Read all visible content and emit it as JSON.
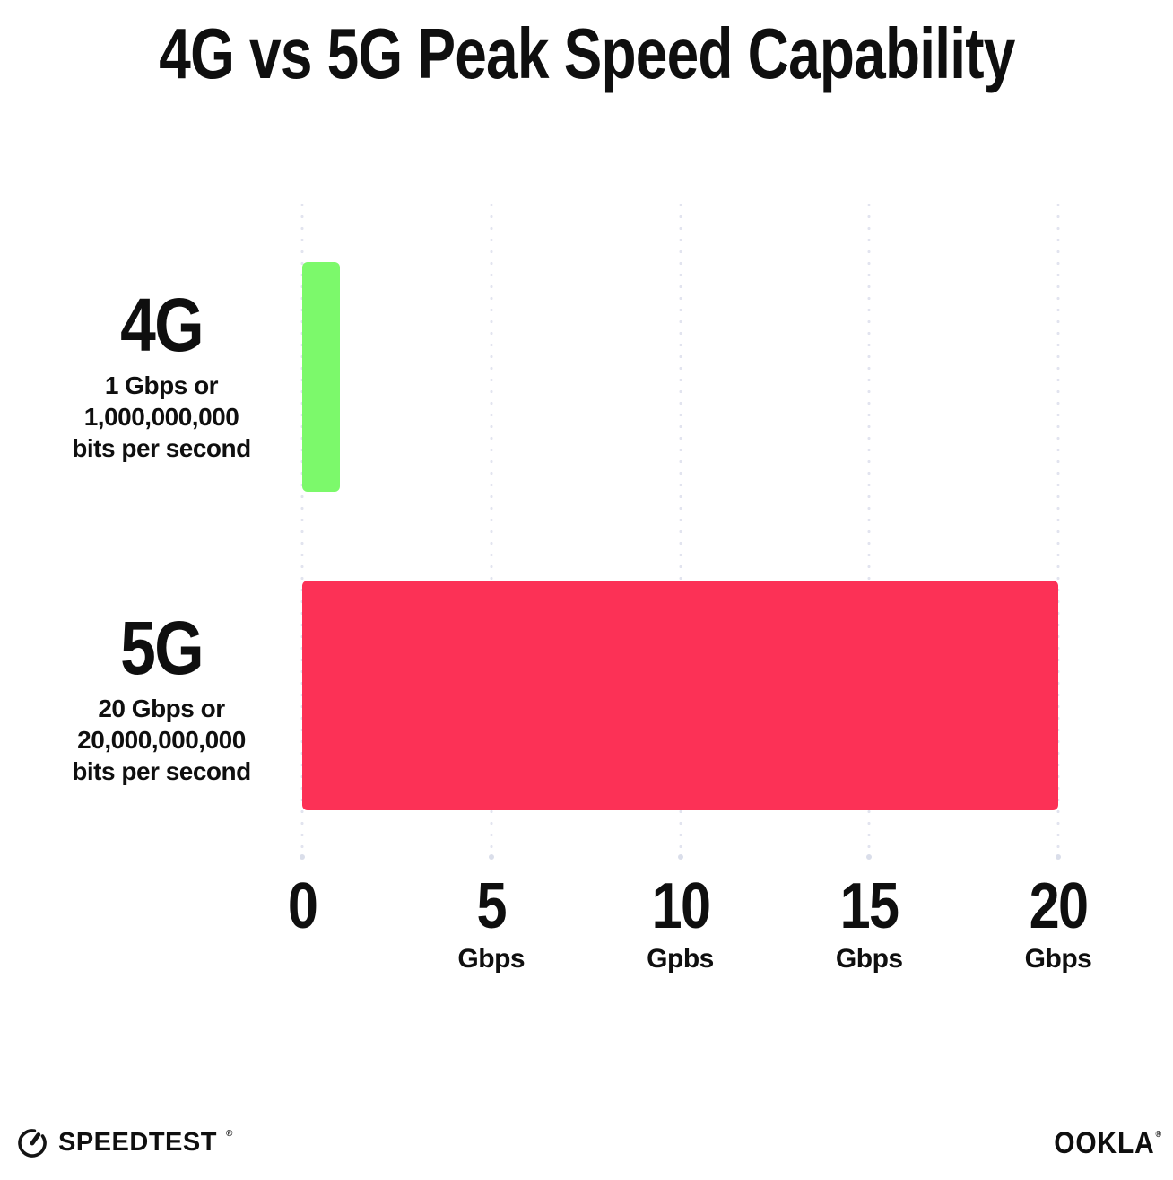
{
  "title": "4G vs 5G Peak Speed Capability",
  "chart_data": {
    "type": "bar",
    "orientation": "horizontal",
    "title": "4G vs 5G Peak Speed Capability",
    "categories": [
      "4G",
      "5G"
    ],
    "values": [
      1,
      20
    ],
    "value_unit": "Gbps",
    "bar_colors": [
      "#7CF96B",
      "#FC3156"
    ],
    "row_labels": [
      {
        "big": "4G",
        "lines": [
          "1 Gbps or",
          "1,000,000,000",
          "bits per second"
        ]
      },
      {
        "big": "5G",
        "lines": [
          "20 Gbps or",
          "20,000,000,000",
          "bits per second"
        ]
      }
    ],
    "x_axis": {
      "min": 0,
      "max": 20,
      "ticks": [
        {
          "value": 0,
          "label": "0",
          "unit": ""
        },
        {
          "value": 5,
          "label": "5",
          "unit": "Gbps"
        },
        {
          "value": 10,
          "label": "10",
          "unit": "Gpbs"
        },
        {
          "value": 15,
          "label": "15",
          "unit": "Gbps"
        },
        {
          "value": 20,
          "label": "20",
          "unit": "Gbps"
        }
      ]
    },
    "grid": {
      "style": "dotted-vertical",
      "color": "#E2E4EF"
    },
    "legend": "none"
  },
  "footer": {
    "speedtest_wordmark": "SPEEDTEST",
    "speedtest_trademark": "®",
    "ookla_wordmark": "OOKLA",
    "ookla_trademark": "®"
  }
}
